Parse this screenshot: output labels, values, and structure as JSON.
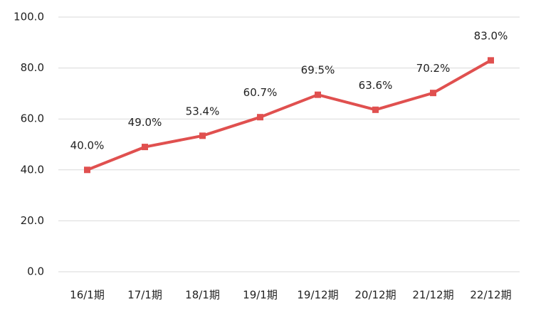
{
  "chart_data": {
    "type": "line",
    "categories": [
      "16/1期",
      "17/1期",
      "18/1期",
      "19/1期",
      "19/12期",
      "20/12期",
      "21/12期",
      "22/12期"
    ],
    "series": [
      {
        "color": "#e0504f",
        "values": [
          40.0,
          49.0,
          53.4,
          60.7,
          69.5,
          63.6,
          70.2,
          83.0
        ],
        "value_labels": [
          "40.0%",
          "49.0%",
          "53.4%",
          "60.7%",
          "69.5%",
          "63.6%",
          "70.2%",
          "83.0%"
        ]
      }
    ],
    "ylim": [
      0,
      100
    ],
    "yticks": [
      {
        "value": 0,
        "label": "0.0"
      },
      {
        "value": 20,
        "label": "20.0"
      },
      {
        "value": 40,
        "label": "40.0"
      },
      {
        "value": 60,
        "label": "60.0"
      },
      {
        "value": 80,
        "label": "80.0"
      },
      {
        "value": 100,
        "label": "100.0"
      }
    ],
    "grid": true
  }
}
